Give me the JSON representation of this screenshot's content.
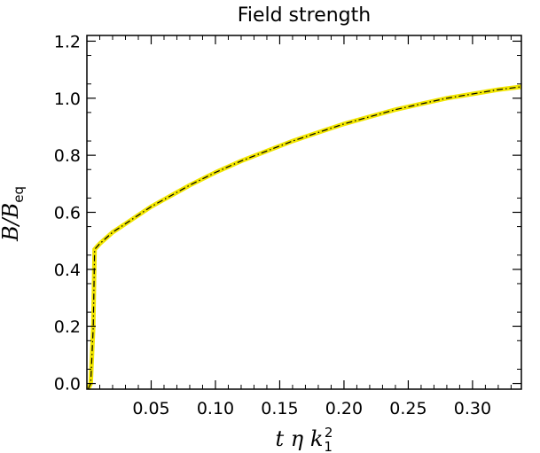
{
  "chart_data": {
    "type": "line",
    "title": "Field strength",
    "xlabel": "t η k_1^2",
    "ylabel": "B/B_eq",
    "xlim": [
      0.0,
      0.338
    ],
    "ylim": [
      -0.02,
      1.22
    ],
    "x_ticks": [
      0.05,
      0.1,
      0.15,
      0.2,
      0.25,
      0.3
    ],
    "x_tick_labels": [
      "0.05",
      "0.10",
      "0.15",
      "0.20",
      "0.25",
      "0.30"
    ],
    "y_ticks": [
      0.0,
      0.2,
      0.4,
      0.6,
      0.8,
      1.0,
      1.2
    ],
    "y_tick_labels": [
      "0.0",
      "0.2",
      "0.4",
      "0.6",
      "0.8",
      "1.0",
      "1.2"
    ],
    "grid": false,
    "colors": {
      "series_main": "#f2e600",
      "series_overlay": "#000000"
    },
    "series": [
      {
        "style": "solid-yellow-thick",
        "x": [
          0.001,
          0.003,
          0.005,
          0.006,
          0.008,
          0.01,
          0.015,
          0.02,
          0.03,
          0.04,
          0.05,
          0.06,
          0.07,
          0.08,
          0.1,
          0.12,
          0.14,
          0.16,
          0.18,
          0.2,
          0.22,
          0.24,
          0.26,
          0.28,
          0.3,
          0.32,
          0.338
        ],
        "y": [
          -0.02,
          0.0,
          0.2,
          0.47,
          0.48,
          0.49,
          0.51,
          0.53,
          0.56,
          0.59,
          0.62,
          0.645,
          0.67,
          0.695,
          0.74,
          0.78,
          0.815,
          0.85,
          0.88,
          0.91,
          0.935,
          0.96,
          0.98,
          1.0,
          1.015,
          1.03,
          1.04
        ]
      },
      {
        "style": "dash-dot-black",
        "x": [
          0.001,
          0.003,
          0.005,
          0.006,
          0.008,
          0.01,
          0.015,
          0.02,
          0.03,
          0.04,
          0.05,
          0.06,
          0.07,
          0.08,
          0.1,
          0.12,
          0.14,
          0.16,
          0.18,
          0.2,
          0.22,
          0.24,
          0.26,
          0.28,
          0.3,
          0.32,
          0.338
        ],
        "y": [
          -0.02,
          0.0,
          0.2,
          0.47,
          0.48,
          0.49,
          0.51,
          0.53,
          0.56,
          0.59,
          0.62,
          0.645,
          0.67,
          0.695,
          0.74,
          0.78,
          0.815,
          0.85,
          0.88,
          0.91,
          0.935,
          0.96,
          0.98,
          1.0,
          1.015,
          1.03,
          1.04
        ]
      }
    ]
  }
}
